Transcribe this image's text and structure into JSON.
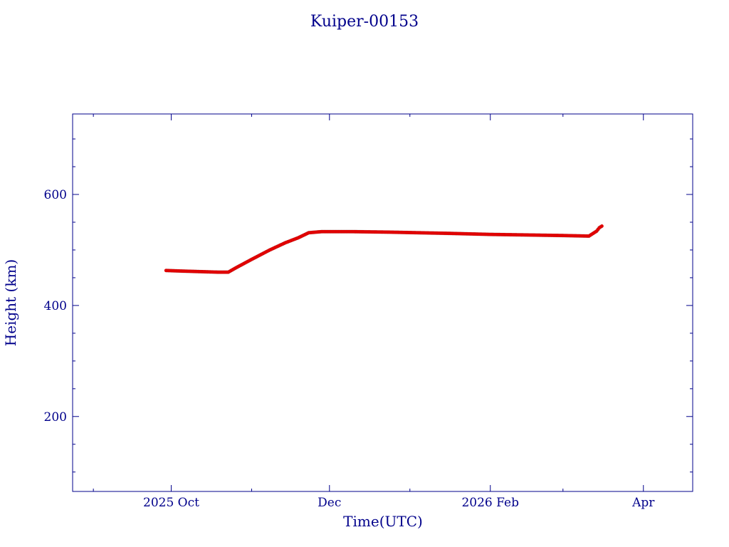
{
  "colors": {
    "axis": "#00008b",
    "text": "#00008b",
    "series_main": "#e00000",
    "series_shadow": "#4a8a8a"
  },
  "chart_data": {
    "type": "scatter",
    "title": "Kuiper-00153",
    "xlabel": "Time(UTC)",
    "ylabel": "Height (km)",
    "x_type": "date",
    "xlim": [
      "2025-08-24",
      "2026-04-20"
    ],
    "ylim": [
      65,
      745
    ],
    "x_ticks": [
      {
        "date": "2025-10-01",
        "label": "2025 Oct"
      },
      {
        "date": "2025-12-01",
        "label": "Dec"
      },
      {
        "date": "2026-02-01",
        "label": "2026 Feb"
      },
      {
        "date": "2026-04-01",
        "label": "Apr"
      }
    ],
    "x_minor_ticks": [
      "2025-09-01",
      "2025-10-01",
      "2025-11-01",
      "2025-12-01",
      "2026-01-01",
      "2026-02-01",
      "2026-03-01",
      "2026-04-01"
    ],
    "y_ticks": [
      200,
      400,
      600
    ],
    "y_minor_step": 50,
    "grid": false,
    "legend": "none",
    "series": [
      {
        "x": [
          "2025-09-29",
          "2025-10-05",
          "2025-10-12",
          "2025-10-19",
          "2025-10-23",
          "2025-10-26",
          "2025-11-01",
          "2025-11-08",
          "2025-11-14",
          "2025-11-19",
          "2025-11-23",
          "2025-11-28",
          "2025-12-10",
          "2025-12-25",
          "2026-01-15",
          "2026-02-01",
          "2026-02-15",
          "2026-03-01",
          "2026-03-11",
          "2026-03-14",
          "2026-03-15",
          "2026-03-16"
        ],
        "y": [
          463,
          462,
          461,
          460,
          460,
          468,
          483,
          500,
          513,
          522,
          531,
          533,
          533,
          532,
          530,
          528,
          527,
          526,
          525,
          534,
          540,
          543
        ]
      }
    ]
  }
}
